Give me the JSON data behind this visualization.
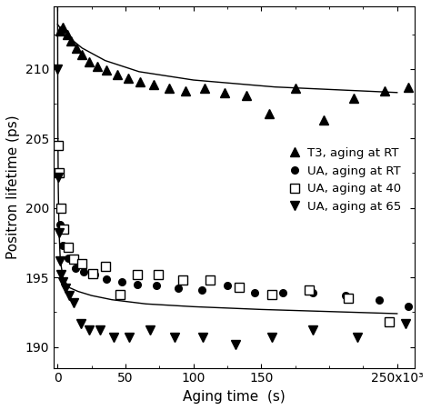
{
  "title": "",
  "xlabel": "Aging time  (s)",
  "ylabel": "Positron lifetime (ps)",
  "xlim": [
    -3000,
    263000
  ],
  "ylim": [
    188.5,
    214.5
  ],
  "xticks": [
    0,
    50000,
    100000,
    150000,
    250000
  ],
  "xtick_labels": [
    "0",
    "50",
    "100",
    "150",
    "250x10³"
  ],
  "yticks": [
    190,
    195,
    200,
    205,
    210
  ],
  "background_color": "#ffffff",
  "T3_RT_x": [
    2000,
    4000,
    7000,
    10000,
    14000,
    18000,
    23000,
    29000,
    36000,
    44000,
    52000,
    61000,
    71000,
    82000,
    94000,
    108000,
    123000,
    139000,
    156000,
    175000,
    196000,
    218000,
    241000,
    258000
  ],
  "T3_RT_y": [
    212.7,
    213.0,
    212.5,
    212.0,
    211.5,
    211.0,
    210.5,
    210.2,
    209.9,
    209.6,
    209.3,
    209.1,
    208.9,
    208.6,
    208.4,
    208.6,
    208.3,
    208.1,
    206.8,
    208.6,
    206.3,
    207.9,
    208.4,
    208.7
  ],
  "UA_RT_x": [
    1500,
    4000,
    8000,
    13000,
    19000,
    27000,
    36000,
    47000,
    59000,
    73000,
    89000,
    106000,
    125000,
    145000,
    166000,
    188000,
    212000,
    237000,
    258000
  ],
  "UA_RT_y": [
    198.8,
    197.3,
    196.4,
    195.7,
    195.4,
    195.2,
    194.9,
    194.7,
    194.5,
    194.4,
    194.2,
    194.1,
    194.4,
    193.9,
    193.9,
    193.9,
    193.7,
    193.4,
    192.9
  ],
  "UA_40_x": [
    500,
    1200,
    2500,
    4500,
    7500,
    12000,
    18000,
    26000,
    35000,
    46000,
    59000,
    74000,
    92000,
    112000,
    134000,
    158000,
    185000,
    214000,
    244000
  ],
  "UA_40_y": [
    204.5,
    202.5,
    200.0,
    198.5,
    197.2,
    196.3,
    196.0,
    195.3,
    195.8,
    193.8,
    195.2,
    195.2,
    194.8,
    194.8,
    194.3,
    193.8,
    194.1,
    193.5,
    191.8
  ],
  "UA_65_x": [
    100,
    400,
    900,
    1600,
    2600,
    4000,
    6000,
    8500,
    12000,
    17000,
    23000,
    31000,
    41000,
    53000,
    68000,
    86000,
    107000,
    131000,
    158000,
    188000,
    221000,
    256000
  ],
  "UA_65_y": [
    210.0,
    202.2,
    198.2,
    196.2,
    195.2,
    194.7,
    194.2,
    193.7,
    193.2,
    191.7,
    191.2,
    191.2,
    190.7,
    190.7,
    191.2,
    190.7,
    190.7,
    190.2,
    190.7,
    191.2,
    190.7,
    191.7
  ],
  "fit_T3_x": [
    0,
    3000,
    8000,
    18000,
    35000,
    60000,
    100000,
    160000,
    250000
  ],
  "fit_T3_y": [
    213.2,
    212.8,
    212.3,
    211.5,
    210.6,
    209.8,
    209.2,
    208.7,
    208.3
  ],
  "fit_UA_x": [
    0,
    200,
    500,
    1000,
    2000,
    4000,
    8000,
    15000,
    25000,
    40000,
    65000,
    100000,
    150000,
    250000
  ],
  "fit_UA_y": [
    215.0,
    206.0,
    201.5,
    198.5,
    196.2,
    195.0,
    194.3,
    194.0,
    193.7,
    193.4,
    193.1,
    192.9,
    192.7,
    192.4
  ],
  "legend_labels": [
    "T3, aging at RT",
    "UA, aging at RT",
    "UA, aging at 40",
    "UA, aging at 65"
  ]
}
